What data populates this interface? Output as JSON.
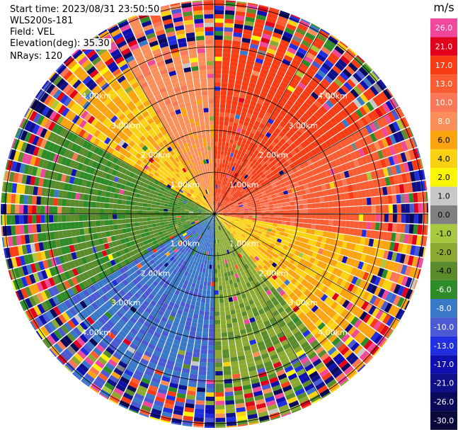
{
  "info": {
    "start_time": "Start time: 2023/08/31 23:50:50",
    "instrument": "WLS200s-181",
    "field": "Field: VEL",
    "elevation": "Elevation(deg): 35.30",
    "nrays": "NRays: 120"
  },
  "colorbar": {
    "unit": "m/s",
    "levels": [
      "26.0",
      "21.0",
      "17.0",
      "13.0",
      "10.0",
      "8.0",
      "6.0",
      "4.0",
      "2.0",
      "1.0",
      "0.0",
      "-1.0",
      "-2.0",
      "-4.0",
      "-6.0",
      "-8.0",
      "-10.0",
      "-13.0",
      "-17.0",
      "-21.0",
      "-26.0",
      "-30.0"
    ],
    "colors": [
      "#f0489a",
      "#e0001c",
      "#f83c14",
      "#fb5c32",
      "#fa7858",
      "#fb8f5a",
      "#fba410",
      "#fad212",
      "#fbf700",
      "#c8c8c8",
      "#808080",
      "#a8c840",
      "#8caa32",
      "#5a8c2c",
      "#2e8c28",
      "#3a78c8",
      "#4b5ad2",
      "#2030e0",
      "#1010b0",
      "#101088",
      "#0a0a5a",
      "#0a0a3a"
    ]
  },
  "chart_data": {
    "type": "heatmap",
    "projection": "polar PPI",
    "field": "VEL",
    "units": "m/s",
    "elevation_deg": 35.3,
    "nrays": 120,
    "range_rings_km": [
      1.0,
      2.0,
      3.0,
      4.0
    ],
    "ring_labels": [
      "1.00km",
      "2.00km",
      "3.00km",
      "4.00km"
    ],
    "colorscale_bounds": [
      26.0,
      21.0,
      17.0,
      13.0,
      10.0,
      8.0,
      6.0,
      4.0,
      2.0,
      1.0,
      0.0,
      -1.0,
      -2.0,
      -4.0,
      -6.0,
      -8.0,
      -10.0,
      -13.0,
      -17.0,
      -21.0,
      -26.0,
      -30.0
    ],
    "regions": [
      {
        "azimuth_deg": [
          330,
          360
        ],
        "velocity_mps": 6.0
      },
      {
        "azimuth_deg": [
          0,
          60
        ],
        "velocity_mps": 13.0
      },
      {
        "azimuth_deg": [
          60,
          100
        ],
        "velocity_mps": 10.0
      },
      {
        "azimuth_deg": [
          100,
          140
        ],
        "velocity_mps": 3.0
      },
      {
        "azimuth_deg": [
          140,
          180
        ],
        "velocity_mps": -3.0
      },
      {
        "azimuth_deg": [
          180,
          240
        ],
        "velocity_mps": -9.0
      },
      {
        "azimuth_deg": [
          240,
          300
        ],
        "velocity_mps": -5.0
      },
      {
        "azimuth_deg": [
          300,
          330
        ],
        "velocity_mps": 3.0
      }
    ]
  }
}
